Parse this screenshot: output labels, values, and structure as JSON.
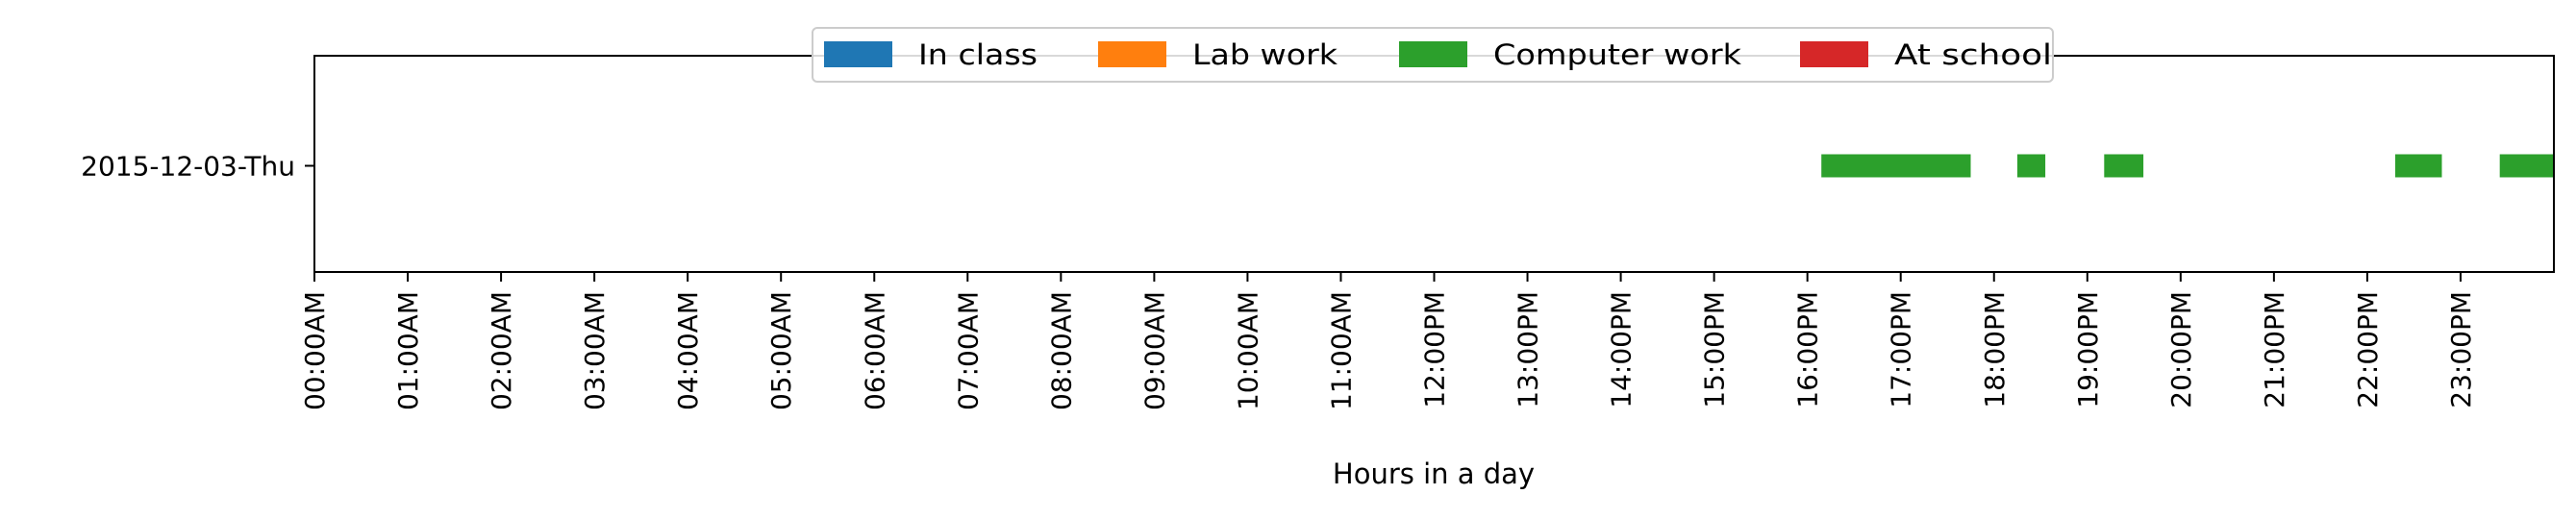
{
  "chart_data": {
    "type": "timeline",
    "xlabel": "Hours in a day",
    "xlim": [
      0,
      24
    ],
    "x_ticks": [
      0,
      1,
      2,
      3,
      4,
      5,
      6,
      7,
      8,
      9,
      10,
      11,
      12,
      13,
      14,
      15,
      16,
      17,
      18,
      19,
      20,
      21,
      22,
      23
    ],
    "x_tick_labels": [
      "00:00AM",
      "01:00AM",
      "02:00AM",
      "03:00AM",
      "04:00AM",
      "05:00AM",
      "06:00AM",
      "07:00AM",
      "08:00AM",
      "09:00AM",
      "10:00AM",
      "11:00AM",
      "12:00PM",
      "13:00PM",
      "14:00PM",
      "15:00PM",
      "16:00PM",
      "17:00PM",
      "18:00PM",
      "19:00PM",
      "20:00PM",
      "21:00PM",
      "22:00PM",
      "23:00PM"
    ],
    "categories": [
      "2015-12-03-Thu"
    ],
    "legend_position": "top-center",
    "series": [
      {
        "name": "In class",
        "color": "#1f77b4",
        "segments": []
      },
      {
        "name": "Lab work",
        "color": "#ff7f0e",
        "segments": []
      },
      {
        "name": "Computer work",
        "color": "#2ca02c",
        "segments": [
          {
            "row": "2015-12-03-Thu",
            "start": 16.15,
            "end": 17.75
          },
          {
            "row": "2015-12-03-Thu",
            "start": 18.25,
            "end": 18.55
          },
          {
            "row": "2015-12-03-Thu",
            "start": 19.18,
            "end": 19.6
          },
          {
            "row": "2015-12-03-Thu",
            "start": 22.3,
            "end": 22.8
          },
          {
            "row": "2015-12-03-Thu",
            "start": 23.42,
            "end": 24.0
          }
        ]
      },
      {
        "name": "At school",
        "color": "#d62728",
        "segments": []
      }
    ]
  }
}
